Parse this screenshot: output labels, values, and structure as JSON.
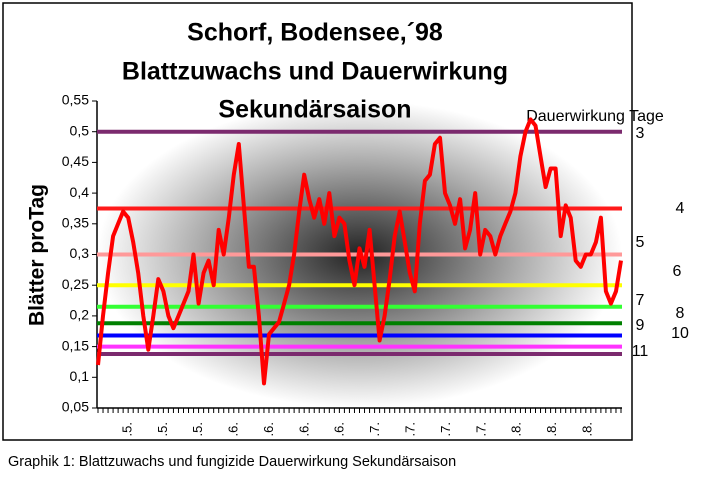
{
  "chart_data": {
    "type": "line",
    "title": [
      "Schorf, Bodensee,´98",
      "Blattzuwachs und Dauerwirkung",
      "Sekundärsaison"
    ],
    "ylabel": "Blätter proTag",
    "legend_title": "Dauerwirkung Tage",
    "caption": "Graphik 1: Blattzuwachs und fungizide Dauerwirkung Sekundärsaison",
    "ylim": [
      0.05,
      0.55
    ],
    "yticks": [
      {
        "value": 0.05,
        "label": "0,05"
      },
      {
        "value": 0.1,
        "label": "0,1"
      },
      {
        "value": 0.15,
        "label": "0,15"
      },
      {
        "value": 0.2,
        "label": "0,2"
      },
      {
        "value": 0.25,
        "label": "0,25"
      },
      {
        "value": 0.3,
        "label": "0,3"
      },
      {
        "value": 0.35,
        "label": "0,35"
      },
      {
        "value": 0.4,
        "label": "0,4"
      },
      {
        "value": 0.45,
        "label": "0,45"
      },
      {
        "value": 0.5,
        "label": "0,5"
      },
      {
        "value": 0.55,
        "label": "0,55"
      }
    ],
    "xticklabels": [
      ".5.",
      ".5.",
      ".5.",
      ".6.",
      ".6.",
      ".6.",
      ".6.",
      ".7.",
      ".7.",
      ".7.",
      ".7.",
      ".8.",
      ".8.",
      ".8."
    ],
    "series": [
      {
        "color": "#ff0000",
        "values": [
          0.12,
          0.2,
          0.27,
          0.33,
          0.35,
          0.37,
          0.36,
          0.32,
          0.27,
          0.2,
          0.145,
          0.2,
          0.26,
          0.24,
          0.2,
          0.18,
          0.2,
          0.22,
          0.24,
          0.3,
          0.22,
          0.27,
          0.29,
          0.25,
          0.34,
          0.3,
          0.36,
          0.43,
          0.48,
          0.38,
          0.28,
          0.28,
          0.2,
          0.09,
          0.17,
          0.18,
          0.19,
          0.22,
          0.25,
          0.3,
          0.37,
          0.43,
          0.39,
          0.36,
          0.39,
          0.35,
          0.4,
          0.33,
          0.36,
          0.35,
          0.29,
          0.25,
          0.31,
          0.28,
          0.34,
          0.25,
          0.16,
          0.2,
          0.26,
          0.33,
          0.37,
          0.32,
          0.27,
          0.24,
          0.35,
          0.42,
          0.43,
          0.48,
          0.49,
          0.4,
          0.38,
          0.35,
          0.39,
          0.31,
          0.34,
          0.4,
          0.3,
          0.34,
          0.33,
          0.3,
          0.33,
          0.35,
          0.37,
          0.4,
          0.46,
          0.5,
          0.52,
          0.51,
          0.46,
          0.41,
          0.44,
          0.44,
          0.33,
          0.38,
          0.36,
          0.29,
          0.28,
          0.3,
          0.3,
          0.32,
          0.36,
          0.24,
          0.22,
          0.24,
          0.29
        ]
      }
    ],
    "reference_lines": [
      {
        "label": "3",
        "value": 0.5,
        "color": "#7b2a6e"
      },
      {
        "label": "4",
        "value": 0.375,
        "color": "#ff1a1a"
      },
      {
        "label": "5",
        "value": 0.3,
        "color": "#ff9999"
      },
      {
        "label": "6",
        "value": 0.25,
        "color": "#ffff00"
      },
      {
        "label": "7",
        "value": 0.215,
        "color": "#33ff33"
      },
      {
        "label": "8",
        "value": 0.188,
        "color": "#008000"
      },
      {
        "label": "9",
        "value": 0.168,
        "color": "#0000ff"
      },
      {
        "label": "10",
        "value": 0.15,
        "color": "#ff33ff"
      },
      {
        "label": "11",
        "value": 0.138,
        "color": "#7b2a6e"
      }
    ]
  }
}
